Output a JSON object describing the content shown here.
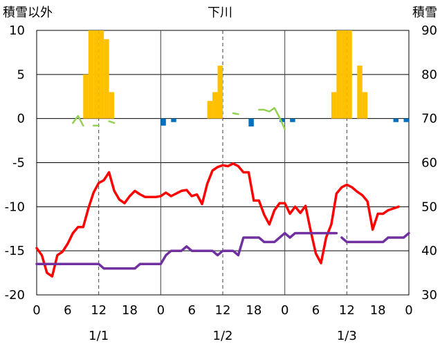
{
  "chart_data": {
    "type": "line",
    "title": "下川",
    "y_left_label": "積雪以外",
    "y_right_label": "積雪",
    "ylim_left": [
      -20,
      10
    ],
    "ylim_right": [
      30,
      90
    ],
    "y_left_ticks": [
      "10",
      "5",
      "0",
      "-5",
      "-10",
      "-15",
      "-20"
    ],
    "y_right_ticks": [
      "90",
      "80",
      "70",
      "60",
      "50",
      "40",
      "30"
    ],
    "x_hour_labels": [
      "0",
      "6",
      "12",
      "18",
      "0",
      "6",
      "12",
      "18",
      "0",
      "6",
      "12",
      "18",
      "0"
    ],
    "date_labels": [
      "1/1",
      "1/2",
      "1/3"
    ],
    "grid": true,
    "colors": {
      "temperature": "#ff0000",
      "snow_depth": "#7030a0",
      "precip": "#ffc000",
      "negative": "#0070c0",
      "green": "#92d050"
    },
    "series": [
      {
        "key": "precip",
        "type": "bar",
        "axis": "left",
        "points": [
          [
            10,
            5
          ],
          [
            11,
            10
          ],
          [
            12,
            10
          ],
          [
            13,
            10
          ],
          [
            14,
            9
          ],
          [
            15,
            3
          ],
          [
            34,
            2
          ],
          [
            35,
            3
          ],
          [
            36,
            6
          ],
          [
            58,
            3
          ],
          [
            59,
            10
          ],
          [
            60,
            10
          ],
          [
            61,
            10
          ],
          [
            63,
            6
          ],
          [
            64,
            3
          ]
        ]
      },
      {
        "key": "negative",
        "type": "bar",
        "axis": "left",
        "points": [
          [
            25,
            -0.8
          ],
          [
            27,
            -0.4
          ],
          [
            42,
            -0.9
          ],
          [
            48,
            -0.4
          ],
          [
            50,
            -0.4
          ],
          [
            70,
            -0.4
          ],
          [
            72,
            -0.4
          ]
        ]
      },
      {
        "key": "green",
        "type": "line",
        "axis": "left",
        "segments": [
          [
            [
              7,
              -0.5
            ],
            [
              8,
              0.3
            ],
            [
              9,
              -0.8
            ]
          ],
          [
            [
              11,
              -0.8
            ],
            [
              12,
              -0.8
            ]
          ],
          [
            [
              14,
              -0.3
            ],
            [
              15,
              -0.5
            ]
          ],
          [
            [
              38,
              0.6
            ],
            [
              39,
              0.5
            ]
          ],
          [
            [
              43,
              1
            ],
            [
              44,
              1
            ],
            [
              45,
              0.8
            ],
            [
              46,
              1.2
            ],
            [
              47,
              0.1
            ],
            [
              48,
              -1.2
            ]
          ]
        ]
      },
      {
        "key": "temperature",
        "type": "line",
        "axis": "left",
        "points": [
          [
            0,
            -14.7
          ],
          [
            1,
            -15.5
          ],
          [
            2,
            -17.5
          ],
          [
            3,
            -17.9
          ],
          [
            4,
            -15.5
          ],
          [
            5,
            -15.1
          ],
          [
            6,
            -14.2
          ],
          [
            7,
            -13
          ],
          [
            8,
            -12.3
          ],
          [
            9,
            -12.3
          ],
          [
            10,
            -10.2
          ],
          [
            11,
            -8.4
          ],
          [
            12,
            -7.3
          ],
          [
            13,
            -7
          ],
          [
            14,
            -6.1
          ],
          [
            15,
            -8.2
          ],
          [
            16,
            -9.2
          ],
          [
            17,
            -9.6
          ],
          [
            18,
            -8.8
          ],
          [
            19,
            -8.2
          ],
          [
            20,
            -8.6
          ],
          [
            21,
            -8.9
          ],
          [
            22,
            -8.9
          ],
          [
            23,
            -8.9
          ],
          [
            24,
            -8.8
          ],
          [
            25,
            -8.4
          ],
          [
            26,
            -8.8
          ],
          [
            27,
            -8.5
          ],
          [
            28,
            -8.2
          ],
          [
            29,
            -8.1
          ],
          [
            30,
            -8.8
          ],
          [
            31,
            -8.6
          ],
          [
            32,
            -9.7
          ],
          [
            33,
            -7.4
          ],
          [
            34,
            -5.9
          ],
          [
            35,
            -5.5
          ],
          [
            36,
            -5.3
          ],
          [
            37,
            -5.4
          ],
          [
            38,
            -5.1
          ],
          [
            39,
            -5.4
          ],
          [
            40,
            -6.1
          ],
          [
            41,
            -6.1
          ],
          [
            42,
            -9.3
          ],
          [
            43,
            -9.3
          ],
          [
            44,
            -10.9
          ],
          [
            45,
            -12
          ],
          [
            46,
            -10.4
          ],
          [
            47,
            -9.6
          ],
          [
            48,
            -9.6
          ],
          [
            49,
            -10.8
          ],
          [
            50,
            -10
          ],
          [
            51,
            -10.7
          ],
          [
            52,
            -9.9
          ],
          [
            53,
            -12.7
          ],
          [
            54,
            -15.3
          ],
          [
            55,
            -16.4
          ],
          [
            56,
            -13.5
          ],
          [
            57,
            -12
          ],
          [
            58,
            -8.5
          ],
          [
            59,
            -7.8
          ],
          [
            60,
            -7.5
          ],
          [
            61,
            -7.8
          ],
          [
            62,
            -8.3
          ],
          [
            63,
            -8.7
          ],
          [
            64,
            -9.4
          ],
          [
            65,
            -12.6
          ],
          [
            66,
            -10.8
          ],
          [
            67,
            -10.8
          ],
          [
            68,
            -10.4
          ],
          [
            69,
            -10.2
          ],
          [
            70,
            -10
          ]
        ]
      },
      {
        "key": "snow_depth",
        "type": "line",
        "axis": "right",
        "segments": [
          [
            [
              0,
              37
            ],
            [
              1,
              37
            ],
            [
              2,
              37
            ],
            [
              3,
              37
            ],
            [
              4,
              37
            ],
            [
              5,
              37
            ],
            [
              6,
              37
            ],
            [
              7,
              37
            ],
            [
              8,
              37
            ],
            [
              9,
              37
            ],
            [
              10,
              37
            ],
            [
              11,
              37
            ],
            [
              12,
              37
            ],
            [
              13,
              36
            ],
            [
              14,
              36
            ],
            [
              15,
              36
            ],
            [
              16,
              36
            ],
            [
              17,
              36
            ],
            [
              18,
              36
            ],
            [
              19,
              36
            ],
            [
              20,
              37
            ],
            [
              21,
              37
            ],
            [
              22,
              37
            ],
            [
              23,
              37
            ],
            [
              24,
              37
            ],
            [
              25,
              39
            ],
            [
              26,
              40
            ],
            [
              27,
              40
            ],
            [
              28,
              40
            ],
            [
              29,
              41
            ],
            [
              30,
              40
            ],
            [
              31,
              40
            ],
            [
              32,
              40
            ],
            [
              33,
              40
            ],
            [
              34,
              40
            ],
            [
              35,
              39
            ],
            [
              36,
              40
            ],
            [
              37,
              40
            ],
            [
              38,
              40
            ],
            [
              39,
              39
            ],
            [
              40,
              43
            ],
            [
              41,
              43
            ],
            [
              42,
              43
            ],
            [
              43,
              43
            ],
            [
              44,
              42
            ],
            [
              45,
              42
            ],
            [
              46,
              42
            ],
            [
              47,
              43
            ],
            [
              48,
              44
            ],
            [
              49,
              43
            ],
            [
              50,
              44
            ],
            [
              51,
              44
            ],
            [
              52,
              44
            ],
            [
              53,
              44
            ],
            [
              54,
              44
            ],
            [
              55,
              44
            ],
            [
              56,
              44
            ],
            [
              57,
              44
            ],
            [
              58,
              44
            ]
          ],
          [
            [
              59,
              43
            ],
            [
              60,
              42
            ],
            [
              61,
              42
            ],
            [
              62,
              42
            ],
            [
              63,
              42
            ],
            [
              64,
              42
            ],
            [
              65,
              42
            ],
            [
              66,
              42
            ],
            [
              67,
              42
            ],
            [
              68,
              43
            ],
            [
              69,
              43
            ],
            [
              70,
              43
            ],
            [
              71,
              43
            ],
            [
              72,
              44
            ]
          ]
        ]
      }
    ]
  }
}
